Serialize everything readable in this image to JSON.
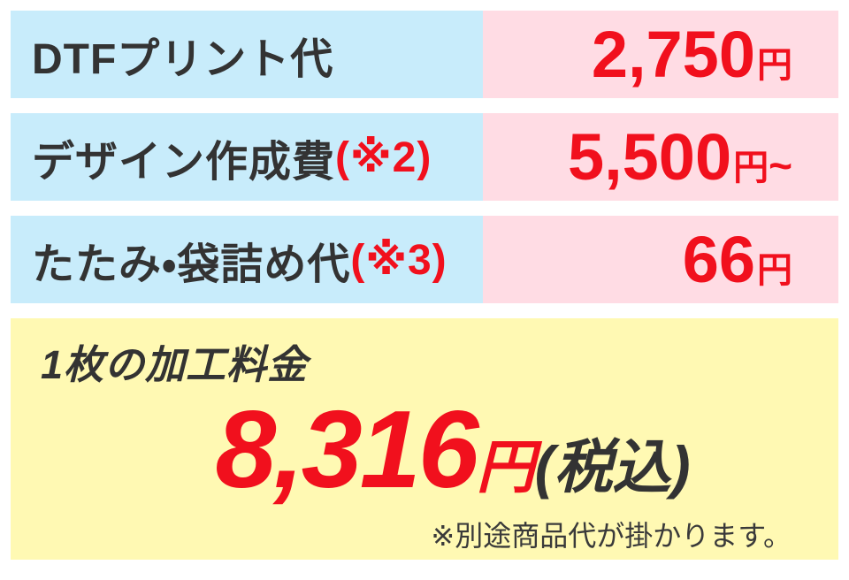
{
  "table": {
    "rows": [
      {
        "label": "DTFプリント代",
        "note": "",
        "amount": "2,750",
        "unit": "円",
        "suffix": ""
      },
      {
        "label": "デザイン作成費",
        "note": "(※2)",
        "amount": "5,500",
        "unit": "円",
        "suffix": "~"
      },
      {
        "label": "たたみ・袋詰め代",
        "note": "(※3)",
        "amount": "66",
        "unit": "円",
        "suffix": ""
      }
    ]
  },
  "total": {
    "heading": "1枚の加工料金",
    "amount": "8,316",
    "unit": "円",
    "tax_label": "(税込)",
    "note": "※別途商品代が掛かります。"
  },
  "colors": {
    "row_label_bg": "#c8ecfb",
    "row_value_bg": "#ffdce4",
    "total_bg": "#fff9b3",
    "accent_red": "#f1101d",
    "text_dark": "#333333"
  },
  "chart_data": {
    "type": "table",
    "rows": [
      [
        "DTFプリント代",
        "2,750円"
      ],
      [
        "デザイン作成費(※2)",
        "5,500円~"
      ],
      [
        "たたみ・袋詰め代(※3)",
        "66円"
      ]
    ],
    "total_label": "1枚の加工料金",
    "total_value": "8,316円(税込)",
    "footnote": "※別途商品代が掛かります。"
  }
}
